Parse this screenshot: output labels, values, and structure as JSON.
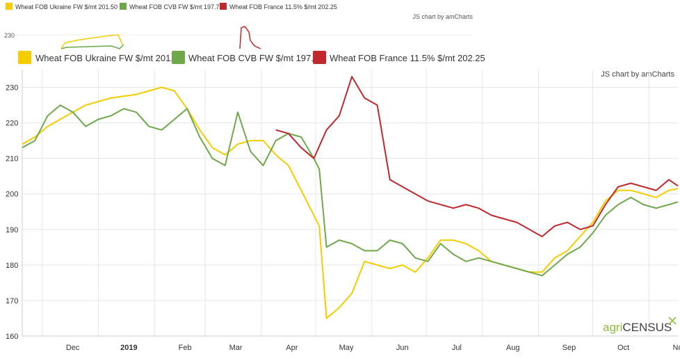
{
  "mini": {
    "legend": [
      "Wheat FOB Ukraine FW $/mt 201.50",
      "Wheat FOB CVB FW $/mt 197.75",
      "Wheat FOB France 11.5% $/mt 202.25"
    ],
    "credit": "JS chart by amCharts",
    "tick": "230"
  },
  "credit": "JS chart by amCharts",
  "brand": {
    "agri": "agri",
    "census": "CENSUS"
  },
  "colors": {
    "ukraine": "#f5cc00",
    "cvb": "#6ea84a",
    "france": "#c0282d",
    "grid": "#e6e6e6",
    "text": "#333333"
  },
  "chart_data": {
    "type": "line",
    "x_unit": "week",
    "ylim": [
      160,
      235
    ],
    "y_ticks": [
      160,
      170,
      180,
      190,
      200,
      210,
      220,
      230
    ],
    "x_ticks": [
      {
        "label": "Dec",
        "x": "2018-12-01"
      },
      {
        "label": "2019",
        "x": "2019-01-01",
        "bold": true
      },
      {
        "label": "Feb",
        "x": "2019-02-01"
      },
      {
        "label": "Mar",
        "x": "2019-03-01"
      },
      {
        "label": "Apr",
        "x": "2019-04-01"
      },
      {
        "label": "May",
        "x": "2019-05-01"
      },
      {
        "label": "Jun",
        "x": "2019-06-01"
      },
      {
        "label": "Jul",
        "x": "2019-07-01"
      },
      {
        "label": "Aug",
        "x": "2019-08-01"
      },
      {
        "label": "Sep",
        "x": "2019-09-01"
      },
      {
        "label": "Oct",
        "x": "2019-10-01"
      },
      {
        "label": "Nov",
        "x": "2019-11-01"
      }
    ],
    "xlim": [
      "2018-11-20",
      "2019-11-17"
    ],
    "legend_position": "top",
    "series": [
      {
        "name": "Wheat FOB Ukraine FW $/mt 201.50",
        "color": "#f5cc00",
        "x": [
          "2018-11-20",
          "2018-11-27",
          "2018-12-04",
          "2018-12-11",
          "2018-12-18",
          "2018-12-25",
          "2019-01-01",
          "2019-01-08",
          "2019-01-15",
          "2019-01-22",
          "2019-01-29",
          "2019-02-05",
          "2019-02-12",
          "2019-02-19",
          "2019-02-26",
          "2019-03-05",
          "2019-03-12",
          "2019-03-19",
          "2019-03-26",
          "2019-04-02",
          "2019-04-09",
          "2019-04-16",
          "2019-04-23",
          "2019-04-30",
          "2019-05-03",
          "2019-05-07",
          "2019-05-14",
          "2019-05-21",
          "2019-05-28",
          "2019-06-04",
          "2019-06-11",
          "2019-06-18",
          "2019-06-25",
          "2019-07-02",
          "2019-07-09",
          "2019-07-16",
          "2019-07-23",
          "2019-07-30",
          "2019-08-06",
          "2019-08-13",
          "2019-08-20",
          "2019-08-27",
          "2019-09-03",
          "2019-09-10",
          "2019-09-17",
          "2019-09-24",
          "2019-10-01",
          "2019-10-08",
          "2019-10-15",
          "2019-10-22",
          "2019-10-29",
          "2019-11-05",
          "2019-11-12",
          "2019-11-17"
        ],
        "values": [
          214,
          216,
          219,
          221,
          223,
          225,
          226,
          227,
          227.5,
          228,
          229,
          230,
          229,
          224,
          218,
          213,
          211,
          214,
          215,
          215,
          211,
          208,
          201,
          194,
          191,
          165,
          168,
          172,
          181,
          180,
          179,
          180,
          178,
          182,
          187,
          187,
          186,
          184,
          181,
          180,
          179,
          178,
          178,
          182,
          184,
          188,
          192,
          198,
          201,
          201,
          200,
          199,
          201,
          201.5
        ]
      },
      {
        "name": "Wheat FOB CVB FW $/mt 197.75",
        "color": "#6ea84a",
        "x": [
          "2018-11-20",
          "2018-11-27",
          "2018-12-04",
          "2018-12-11",
          "2018-12-18",
          "2018-12-25",
          "2019-01-01",
          "2019-01-08",
          "2019-01-15",
          "2019-01-22",
          "2019-01-29",
          "2019-02-05",
          "2019-02-12",
          "2019-02-19",
          "2019-02-26",
          "2019-03-05",
          "2019-03-12",
          "2019-03-19",
          "2019-03-26",
          "2019-04-02",
          "2019-04-09",
          "2019-04-16",
          "2019-04-23",
          "2019-04-30",
          "2019-05-03",
          "2019-05-07",
          "2019-05-14",
          "2019-05-21",
          "2019-05-28",
          "2019-06-04",
          "2019-06-11",
          "2019-06-18",
          "2019-06-25",
          "2019-07-02",
          "2019-07-09",
          "2019-07-16",
          "2019-07-23",
          "2019-07-30",
          "2019-08-06",
          "2019-08-13",
          "2019-08-20",
          "2019-08-27",
          "2019-09-03",
          "2019-09-10",
          "2019-09-17",
          "2019-09-24",
          "2019-10-01",
          "2019-10-08",
          "2019-10-15",
          "2019-10-22",
          "2019-10-29",
          "2019-11-05",
          "2019-11-12",
          "2019-11-17"
        ],
        "values": [
          213,
          215,
          222,
          225,
          223,
          219,
          221,
          222,
          224,
          223,
          219,
          218,
          221,
          224,
          216,
          210,
          208,
          223,
          212,
          208,
          215,
          217,
          216,
          210,
          207,
          185,
          187,
          186,
          184,
          184,
          187,
          186,
          182,
          181,
          186,
          183,
          181,
          182,
          181,
          180,
          179,
          178,
          177,
          180,
          183,
          185,
          189,
          194,
          197,
          199,
          197,
          196,
          197,
          197.75
        ]
      },
      {
        "name": "Wheat FOB France 11.5% $/mt 202.25",
        "color": "#c0282d",
        "x": [
          "2019-04-09",
          "2019-04-16",
          "2019-04-23",
          "2019-04-30",
          "2019-05-07",
          "2019-05-14",
          "2019-05-21",
          "2019-05-28",
          "2019-06-04",
          "2019-06-11",
          "2019-06-18",
          "2019-06-25",
          "2019-07-02",
          "2019-07-09",
          "2019-07-16",
          "2019-07-23",
          "2019-07-30",
          "2019-08-06",
          "2019-08-13",
          "2019-08-20",
          "2019-08-27",
          "2019-09-03",
          "2019-09-10",
          "2019-09-17",
          "2019-09-24",
          "2019-10-01",
          "2019-10-08",
          "2019-10-15",
          "2019-10-22",
          "2019-10-29",
          "2019-11-05",
          "2019-11-12",
          "2019-11-17"
        ],
        "values": [
          218,
          217,
          213,
          210,
          218,
          222,
          233,
          227,
          225,
          204,
          202,
          200,
          198,
          197,
          196,
          197,
          196,
          194,
          193,
          192,
          190,
          188,
          191,
          192,
          190,
          191,
          197,
          202,
          203,
          202,
          201,
          204,
          202.25
        ]
      }
    ]
  }
}
